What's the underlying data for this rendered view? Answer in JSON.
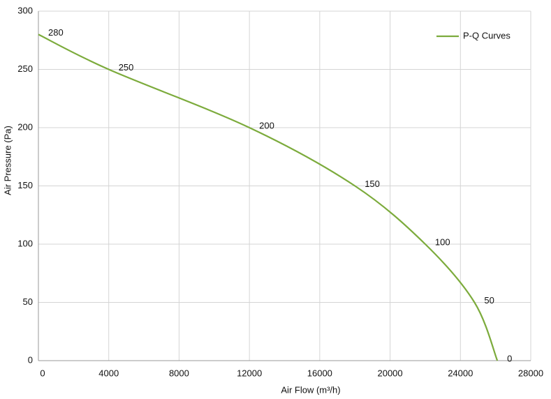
{
  "chart_data": {
    "type": "line",
    "x_label": "Air Flow  (m³/h)",
    "y_label": "Air Pressure  (Pa)",
    "x": [
      0,
      4000,
      12000,
      18000,
      22000,
      24800,
      26100
    ],
    "series": [
      {
        "name": "P-Q Curves",
        "color": "#7cab3c",
        "values": [
          280,
          250,
          200,
          150,
          100,
          50,
          0
        ]
      }
    ],
    "xlim": [
      0,
      28000
    ],
    "xticks": [
      0,
      4000,
      8000,
      12000,
      16000,
      20000,
      24000,
      28000
    ],
    "ylim": [
      0,
      300
    ],
    "yticks": [
      0,
      50,
      100,
      150,
      200,
      250,
      300
    ],
    "grid": true,
    "legend": "top-right",
    "point_labels": true
  }
}
